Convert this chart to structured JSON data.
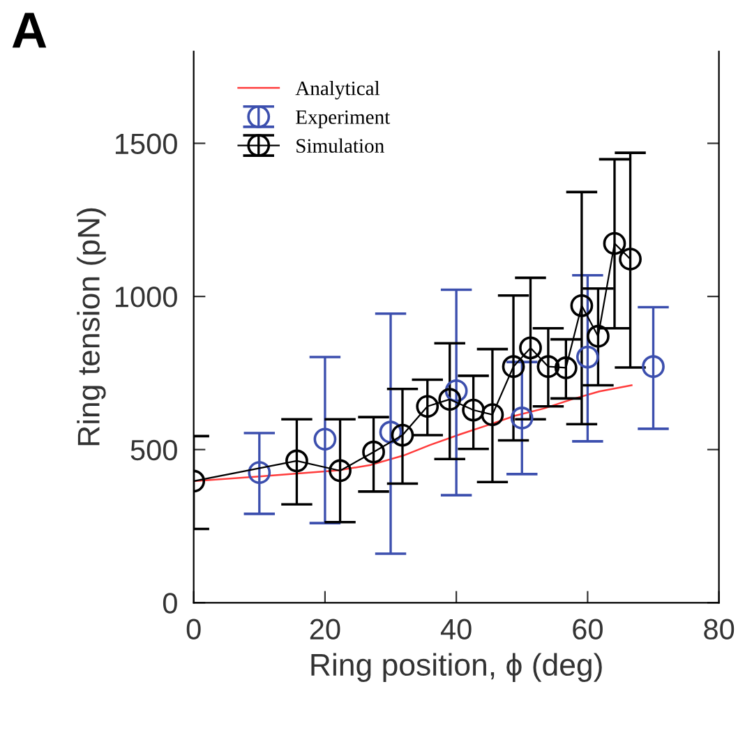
{
  "chart_data": {
    "type": "line",
    "xlabel": "Ring position, ϕ (deg)",
    "ylabel": "Ring tension (pN)",
    "annotations": [
      "A"
    ],
    "xlim": [
      0,
      80
    ],
    "ylim": [
      0,
      1800
    ],
    "xticks": [
      0,
      20,
      40,
      60,
      80
    ],
    "yticks": [
      0,
      500,
      1000,
      1500
    ],
    "grid": false,
    "legend": "top left",
    "marker": "circle",
    "series": [
      {
        "name": "Analytical",
        "marker": "none",
        "color": "#ff3b3b",
        "x": [
          0,
          10,
          22,
          27,
          32,
          36,
          40.6,
          44.8,
          49,
          53.3,
          57.6,
          61.8,
          66.7
        ],
        "values": [
          397,
          412,
          432,
          450,
          481,
          515,
          550,
          580,
          611,
          634,
          664,
          690,
          710
        ]
      },
      {
        "name": "Experiment",
        "type": "scatter",
        "color": "#3c4fae",
        "x": [
          10,
          20,
          30,
          40,
          50,
          60,
          70
        ],
        "values": [
          425,
          534,
          557,
          692,
          603,
          802,
          771
        ],
        "errors": [
          [
            290,
            554
          ],
          [
            260,
            802
          ],
          [
            160,
            944
          ],
          [
            351,
            1022
          ],
          [
            420,
            786
          ],
          [
            527,
            1069
          ],
          [
            568,
            965
          ]
        ]
      },
      {
        "name": "Simulation",
        "color": "#000000",
        "x": [
          0,
          15.7,
          22.3,
          27.4,
          31.8,
          35.6,
          39.0,
          42.6,
          45.5,
          48.7,
          51.3,
          54.0,
          56.7,
          59.1,
          61.6,
          64.1,
          66.5
        ],
        "values": [
          397,
          463,
          431,
          492,
          547,
          641,
          664,
          629,
          614,
          771,
          832,
          771,
          767,
          970,
          870,
          1173,
          1122
        ],
        "errors": [
          [
            241,
            544
          ],
          [
            321,
            599
          ],
          [
            263,
            599
          ],
          [
            363,
            606
          ],
          [
            389,
            698
          ],
          [
            547,
            728
          ],
          [
            469,
            847
          ],
          [
            502,
            741
          ],
          [
            394,
            828
          ],
          [
            530,
            1003
          ],
          [
            599,
            1061
          ],
          [
            641,
            896
          ],
          [
            667,
            860
          ],
          [
            583,
            1341
          ],
          [
            710,
            1026
          ],
          [
            896,
            1448
          ],
          [
            768,
            1469
          ]
        ]
      }
    ]
  }
}
